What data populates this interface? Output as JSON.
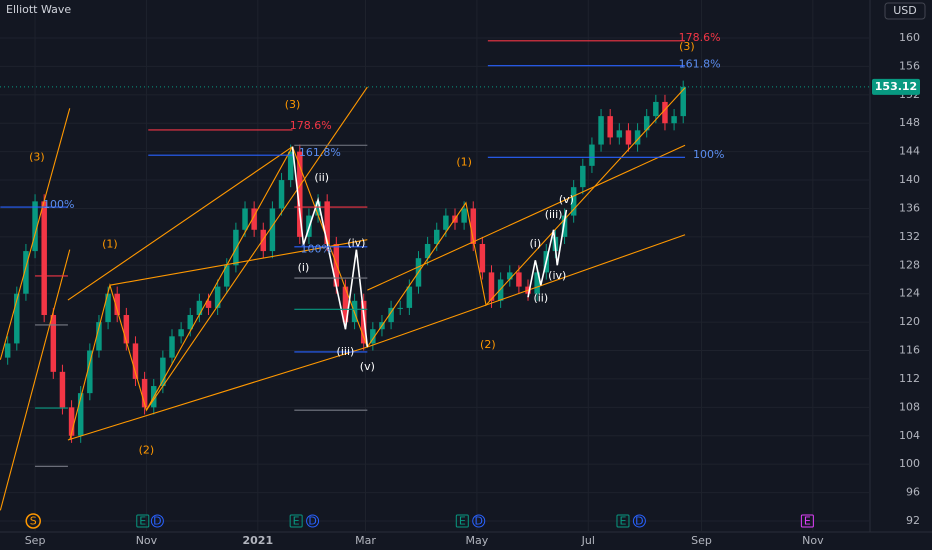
{
  "chart_data": {
    "type": "candlestick",
    "title": "Elliott Wave",
    "currency": "USD",
    "last_price": 153.12,
    "up_color": "#089981",
    "down_color": "#f23645",
    "xlim": [
      -19.2,
      457.3
    ],
    "ylim": [
      90.45,
      165.35
    ],
    "xticks": [
      {
        "value": 0,
        "label": "Sep"
      },
      {
        "value": 61,
        "label": "Nov"
      },
      {
        "value": 122,
        "label": "2021"
      },
      {
        "value": 181,
        "label": "Mar"
      },
      {
        "value": 242,
        "label": "May"
      },
      {
        "value": 303,
        "label": "Jul"
      },
      {
        "value": 365,
        "label": "Sep"
      },
      {
        "value": 426,
        "label": "Nov"
      }
    ],
    "yticks": [
      92,
      96,
      100,
      104,
      108,
      112,
      116,
      120,
      124,
      128,
      132,
      136,
      140,
      144,
      148,
      152,
      156,
      160
    ],
    "grid": true,
    "x": [
      -15,
      -10,
      -5,
      0,
      5,
      10,
      15,
      20,
      25,
      30,
      35,
      40,
      45,
      50,
      55,
      60,
      65,
      70,
      75,
      80,
      85,
      90,
      95,
      100,
      105,
      110,
      115,
      120,
      125,
      130,
      135,
      140,
      145,
      150,
      155,
      160,
      165,
      170,
      175,
      180,
      185,
      190,
      195,
      200,
      205,
      210,
      215,
      220,
      225,
      230,
      235,
      240,
      245,
      250,
      255,
      260,
      265,
      270,
      275,
      280,
      285,
      290,
      295,
      300,
      305,
      310,
      315,
      320,
      325,
      330,
      335,
      340,
      345,
      350,
      355
    ],
    "open": [
      115,
      117,
      124,
      130,
      137,
      121,
      113,
      108,
      104,
      110,
      116,
      120,
      124,
      121,
      117,
      112,
      108,
      111,
      115,
      118,
      119,
      121,
      123,
      122,
      125,
      128,
      133,
      136,
      133,
      130,
      136,
      140,
      144,
      132,
      135,
      137,
      131,
      125,
      120,
      123,
      117,
      119,
      120,
      122,
      122,
      125,
      129,
      131,
      133,
      135,
      134,
      136,
      131,
      127,
      123,
      126,
      127,
      125,
      124,
      127,
      130,
      132,
      135,
      139,
      142,
      145,
      149,
      146,
      147,
      145,
      147,
      149,
      151,
      148,
      149
    ],
    "high": [
      118,
      125,
      131,
      138,
      138,
      122,
      114,
      109,
      111,
      117,
      121,
      125,
      125,
      122,
      118,
      113,
      112,
      116,
      119,
      120,
      122,
      124,
      124,
      126,
      129,
      134,
      137,
      137,
      134,
      137,
      141,
      145,
      145,
      136,
      138,
      138,
      132,
      126,
      124,
      124,
      120,
      121,
      123,
      123,
      126,
      130,
      132,
      134,
      136,
      136,
      137,
      137,
      132,
      128,
      127,
      128,
      128,
      126,
      128,
      131,
      133,
      136,
      140,
      143,
      146,
      150,
      150,
      148,
      148,
      148,
      150,
      152,
      152,
      150,
      154
    ],
    "low": [
      114,
      116,
      123,
      129,
      120,
      112,
      107,
      103,
      103,
      109,
      115,
      119,
      120,
      116,
      111,
      107,
      107,
      110,
      114,
      117,
      118,
      120,
      121,
      121,
      124,
      127,
      132,
      132,
      129,
      129,
      135,
      139,
      131,
      131,
      134,
      130,
      124,
      119,
      119,
      116,
      116,
      118,
      119,
      121,
      121,
      124,
      128,
      130,
      132,
      133,
      133,
      130,
      126,
      122,
      122,
      125,
      124,
      123,
      123,
      126,
      129,
      131,
      134,
      138,
      141,
      144,
      145,
      145,
      144,
      144,
      146,
      148,
      147,
      147,
      148
    ],
    "close": [
      117,
      124,
      130,
      137,
      121,
      113,
      108,
      104,
      110,
      116,
      120,
      124,
      121,
      117,
      112,
      108,
      111,
      115,
      118,
      119,
      121,
      123,
      122,
      125,
      128,
      133,
      136,
      133,
      130,
      136,
      140,
      144,
      132,
      135,
      137,
      131,
      125,
      120,
      123,
      117,
      119,
      120,
      122,
      122,
      125,
      129,
      131,
      133,
      135,
      134,
      136,
      131,
      127,
      123,
      126,
      127,
      125,
      124,
      127,
      130,
      132,
      135,
      139,
      142,
      145,
      149,
      146,
      147,
      145,
      147,
      149,
      151,
      148,
      149,
      153.12
    ],
    "lines": [
      {
        "color": "#ff9800",
        "x": [
          -19,
          19
        ],
        "y": [
          114.7,
          150.1
        ]
      },
      {
        "color": "#ff9800",
        "x": [
          -19,
          19
        ],
        "y": [
          93.5,
          130.2
        ]
      },
      {
        "color": "#ff9800",
        "x": [
          19,
          41,
          61,
          141
        ],
        "y": [
          103.4,
          125.2,
          107.6,
          144.7
        ]
      },
      {
        "color": "#ff9800",
        "x": [
          18,
          141
        ],
        "y": [
          123.1,
          144.7
        ]
      },
      {
        "color": "#ff9800",
        "x": [
          61,
          182
        ],
        "y": [
          107.6,
          153.1
        ]
      },
      {
        "color": "#ff9800",
        "x": [
          18,
          182
        ],
        "y": [
          103.4,
          116.5
        ]
      },
      {
        "color": "#ff9800",
        "x": [
          41,
          182
        ],
        "y": [
          125.2,
          131.6
        ]
      },
      {
        "color": "#ff9800",
        "x": [
          141,
          182,
          236,
          247,
          356
        ],
        "y": [
          144.7,
          116.5,
          136.8,
          122.4,
          153
        ]
      },
      {
        "color": "#ff9800",
        "x": [
          182,
          356
        ],
        "y": [
          124.5,
          144.9
        ]
      },
      {
        "color": "#ff9800",
        "x": [
          182,
          356
        ],
        "y": [
          116.5,
          132.3
        ]
      },
      {
        "color": "#ffffff",
        "x": [
          141,
          147,
          155,
          170,
          176,
          182
        ],
        "y": [
          144.7,
          130.9,
          137.2,
          119,
          130.2,
          116.5
        ]
      },
      {
        "color": "#ffffff",
        "x": [
          270,
          274,
          277,
          284,
          286,
          291
        ],
        "y": [
          123.5,
          128.7,
          125.2,
          133,
          128,
          135.8
        ]
      },
      {
        "color": "#2962ff",
        "x": [
          -19,
          18
        ],
        "y": [
          136.2,
          136.2
        ]
      },
      {
        "color": "#787b86",
        "x": [
          0,
          18
        ],
        "y": [
          99.7,
          99.7
        ]
      },
      {
        "color": "#f23645",
        "x": [
          0,
          18
        ],
        "y": [
          126.5,
          126.5
        ]
      },
      {
        "color": "#787b86",
        "x": [
          0,
          18
        ],
        "y": [
          119.6,
          119.6
        ]
      },
      {
        "color": "#089981",
        "x": [
          0,
          18
        ],
        "y": [
          107.9,
          107.9
        ]
      },
      {
        "color": "#f23645",
        "x": [
          62,
          141
        ],
        "y": [
          147.05,
          147.05
        ]
      },
      {
        "color": "#2962ff",
        "x": [
          62,
          141
        ],
        "y": [
          143.5,
          143.5
        ]
      },
      {
        "color": "#787b86",
        "x": [
          142,
          182
        ],
        "y": [
          144.9,
          144.9
        ]
      },
      {
        "color": "#f23645",
        "x": [
          142,
          182
        ],
        "y": [
          136.2,
          136.2
        ]
      },
      {
        "color": "#2962ff",
        "x": [
          142,
          182
        ],
        "y": [
          130.6,
          130.6
        ]
      },
      {
        "color": "#787b86",
        "x": [
          142,
          182
        ],
        "y": [
          126.2,
          126.2
        ]
      },
      {
        "color": "#089981",
        "x": [
          142,
          182
        ],
        "y": [
          121.8,
          121.8
        ]
      },
      {
        "color": "#2962ff",
        "x": [
          142,
          182
        ],
        "y": [
          115.8,
          115.8
        ]
      },
      {
        "color": "#787b86",
        "x": [
          142,
          182
        ],
        "y": [
          107.6,
          107.6
        ]
      },
      {
        "color": "#f23645",
        "x": [
          248,
          356
        ],
        "y": [
          159.6,
          159.6
        ]
      },
      {
        "color": "#2962ff",
        "x": [
          248,
          356
        ],
        "y": [
          156.1,
          156.1
        ]
      },
      {
        "color": "#2962ff",
        "x": [
          248,
          356
        ],
        "y": [
          143.2,
          143.2
        ]
      }
    ],
    "annotations": [
      {
        "text": "(3)",
        "x": 1,
        "y": 143.2,
        "color": "#ff9800"
      },
      {
        "text": "100%",
        "x": 13,
        "y": 136.5,
        "color": "#5b8def"
      },
      {
        "text": "(1)",
        "x": 41,
        "y": 130.9,
        "color": "#ff9800"
      },
      {
        "text": "(2)",
        "x": 61,
        "y": 101.9,
        "color": "#ff9800"
      },
      {
        "text": "(3)",
        "x": 141,
        "y": 150.6,
        "color": "#ff9800"
      },
      {
        "text": "178.6%",
        "x": 151,
        "y": 147.6,
        "color": "#f23645"
      },
      {
        "text": "161.8%",
        "x": 156,
        "y": 143.8,
        "color": "#5b8def"
      },
      {
        "text": "100%",
        "x": 154,
        "y": 130.2,
        "color": "#5b8def"
      },
      {
        "text": "(ii)",
        "x": 157,
        "y": 140.3,
        "color": "#ffffff"
      },
      {
        "text": "(i)",
        "x": 147,
        "y": 127.6,
        "color": "#ffffff"
      },
      {
        "text": "(iv)",
        "x": 176,
        "y": 131.1,
        "color": "#ffffff"
      },
      {
        "text": "(iii)",
        "x": 170,
        "y": 115.8,
        "color": "#ffffff"
      },
      {
        "text": "(v)",
        "x": 182,
        "y": 113.7,
        "color": "#ffffff"
      },
      {
        "text": "(1)",
        "x": 235,
        "y": 142.5,
        "color": "#ff9800"
      },
      {
        "text": "(2)",
        "x": 248,
        "y": 116.8,
        "color": "#ff9800"
      },
      {
        "text": "(i)",
        "x": 274,
        "y": 131,
        "color": "#ffffff"
      },
      {
        "text": "(ii)",
        "x": 277,
        "y": 123.3,
        "color": "#ffffff"
      },
      {
        "text": "(iii)",
        "x": 284,
        "y": 135.1,
        "color": "#ffffff"
      },
      {
        "text": "(iv)",
        "x": 286,
        "y": 126.5,
        "color": "#ffffff"
      },
      {
        "text": "(v)",
        "x": 291,
        "y": 137.2,
        "color": "#ffffff"
      },
      {
        "text": "(3)",
        "x": 357,
        "y": 158.7,
        "color": "#ff9800"
      },
      {
        "text": "178.6%",
        "x": 364,
        "y": 160,
        "color": "#f23645"
      },
      {
        "text": "161.8%",
        "x": 364,
        "y": 156.3,
        "color": "#5b8def"
      },
      {
        "text": "100%",
        "x": 369,
        "y": 143.5,
        "color": "#5b8def"
      }
    ],
    "events": [
      {
        "label": "S",
        "x": -1,
        "color": "#ff9800"
      },
      {
        "label": "E",
        "x": 59,
        "color": "#089981"
      },
      {
        "label": "D",
        "x": 67,
        "color": "#2962ff"
      },
      {
        "label": "E",
        "x": 143,
        "color": "#089981"
      },
      {
        "label": "D",
        "x": 152,
        "color": "#2962ff"
      },
      {
        "label": "E",
        "x": 234,
        "color": "#089981"
      },
      {
        "label": "D",
        "x": 243,
        "color": "#2962ff"
      },
      {
        "label": "E",
        "x": 322,
        "color": "#089981"
      },
      {
        "label": "D",
        "x": 331,
        "color": "#2962ff"
      },
      {
        "label": "E",
        "x": 423,
        "color": "#e040fb"
      }
    ]
  }
}
